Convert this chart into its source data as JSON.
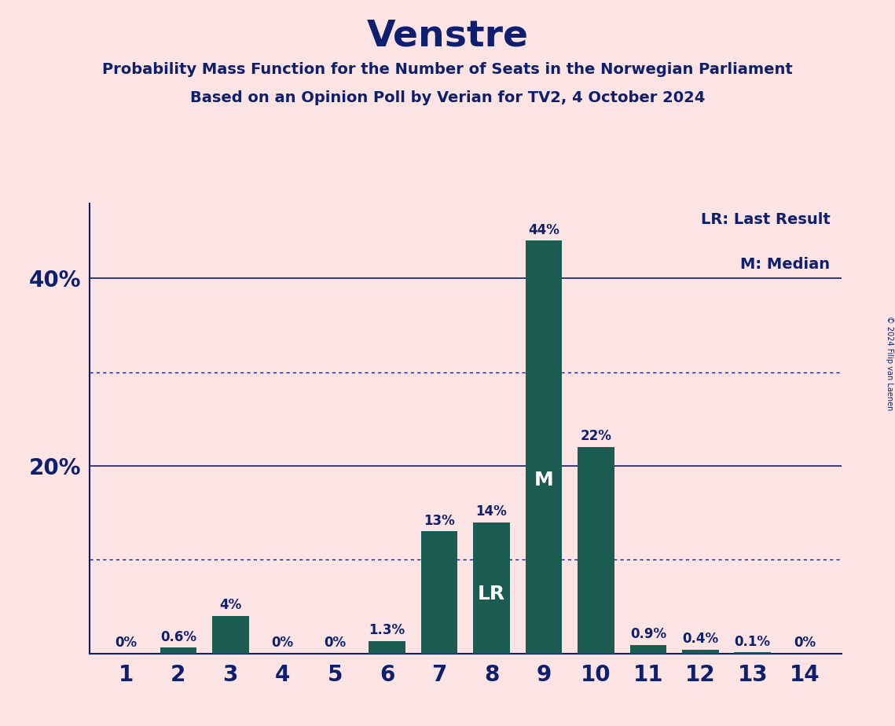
{
  "title": "Venstre",
  "subtitle1": "Probability Mass Function for the Number of Seats in the Norwegian Parliament",
  "subtitle2": "Based on an Opinion Poll by Verian for TV2, 4 October 2024",
  "copyright": "© 2024 Filip van Laenen",
  "legend_lr": "LR: Last Result",
  "legend_m": "M: Median",
  "background_color": "#fce4e4",
  "bar_color": "#1a5c52",
  "text_color": "#0d1f6e",
  "categories": [
    1,
    2,
    3,
    4,
    5,
    6,
    7,
    8,
    9,
    10,
    11,
    12,
    13,
    14
  ],
  "values": [
    0.0,
    0.6,
    4.0,
    0.0,
    0.0,
    1.3,
    13.0,
    14.0,
    44.0,
    22.0,
    0.9,
    0.4,
    0.1,
    0.0
  ],
  "labels": [
    "0%",
    "0.6%",
    "4%",
    "0%",
    "0%",
    "1.3%",
    "13%",
    "14%",
    "44%",
    "22%",
    "0.9%",
    "0.4%",
    "0.1%",
    "0%"
  ],
  "lr_index": 7,
  "median_index": 8,
  "ylim": [
    0,
    48
  ],
  "solid_lines": [
    20,
    40
  ],
  "dotted_lines": [
    10,
    30
  ],
  "bar_width": 0.7
}
